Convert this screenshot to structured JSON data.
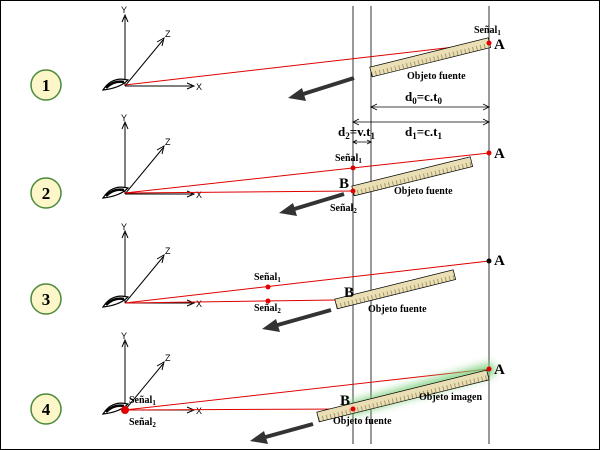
{
  "colors": {
    "ray": "#e00000",
    "step_circle_fill": "#fdf6c8",
    "step_circle_stroke": "#4a8a3a",
    "ruler_fill": "#eadfb4",
    "arrow": "#333333",
    "glow": "#7fd07f"
  },
  "axes": {
    "x": "X",
    "y": "Y",
    "z": "Z"
  },
  "steps": [
    {
      "number": "1",
      "source_label": "Objeto fuente",
      "point_a": "A",
      "signal": "Señal",
      "signal_sub": "1"
    },
    {
      "number": "2",
      "source_label": "Objeto fuente",
      "point_a": "A",
      "point_b": "B",
      "signal1": "Señal",
      "signal1_sub": "1",
      "signal2": "Señal",
      "signal2_sub": "2"
    },
    {
      "number": "3",
      "source_label": "Objeto fuente",
      "point_a": "A",
      "point_b": "B",
      "signal1": "Señal",
      "signal1_sub": "1",
      "signal2": "Señal",
      "signal2_sub": "2"
    },
    {
      "number": "4",
      "source_label": "Objeto fuente",
      "image_label": "Objeto imagen",
      "point_a": "A",
      "point_b": "B",
      "signal1": "Señal",
      "signal1_sub": "1",
      "signal2": "Señal",
      "signal2_sub": "2"
    }
  ],
  "equations": {
    "d0": {
      "main": "d",
      "sub": "0",
      "rest": "=c.t",
      "sub2": "0"
    },
    "d1": {
      "main": "d",
      "sub": "1",
      "rest": "=c.t",
      "sub2": "1"
    },
    "d2": {
      "main": "d",
      "sub": "2",
      "rest": "=v.t",
      "sub2": "1"
    }
  },
  "icons": [
    "eye-icon",
    "motion-arrow-icon",
    "ruler-icon"
  ]
}
